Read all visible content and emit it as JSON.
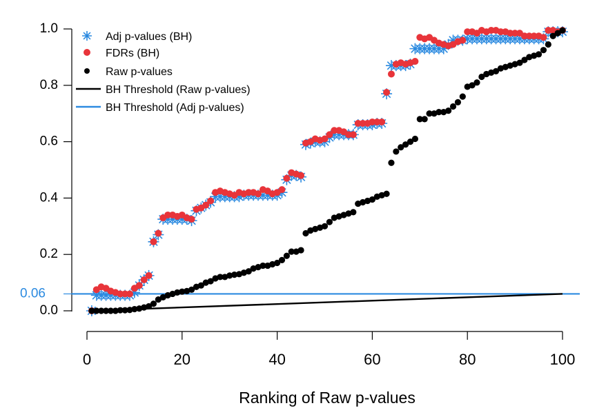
{
  "chart_data": {
    "type": "scatter",
    "title": "",
    "xlabel": "Ranking of Raw p-values",
    "ylabel": "",
    "xlim": [
      0,
      100
    ],
    "ylim": [
      0,
      1
    ],
    "x_ticks": [
      0,
      20,
      40,
      60,
      80,
      100
    ],
    "x_tick_labels": [
      "0",
      "20",
      "40",
      "60",
      "80",
      "100"
    ],
    "y_ticks": [
      0.0,
      0.2,
      0.4,
      0.6,
      0.8,
      1.0
    ],
    "y_tick_labels": [
      "0.0",
      "0.2",
      "0.4",
      "0.6",
      "0.8",
      "1.0"
    ],
    "reference_line": {
      "value": 0.06,
      "label": "0.06",
      "color": "#2b8ae0"
    },
    "colors": {
      "adj": "#2b8ae0",
      "fdr": "#e8343a",
      "raw": "#000000",
      "bh_raw": "#000000",
      "bh_adj": "#2b8ae0"
    },
    "legend": {
      "position": "top-left",
      "entries": [
        {
          "label": "Adj p-values (BH)",
          "kind": "star",
          "series": "adj"
        },
        {
          "label": "FDRs (BH)",
          "kind": "dot",
          "series": "fdr"
        },
        {
          "label": "Raw p-values",
          "kind": "dot",
          "series": "raw"
        },
        {
          "label": "BH Threshold (Raw p-values)",
          "kind": "line",
          "series": "bh_raw"
        },
        {
          "label": "BH Threshold (Adj p-values)",
          "kind": "line",
          "series": "bh_adj"
        }
      ]
    },
    "series": [
      {
        "name": "Adj p-values (BH)",
        "marker": "star",
        "x": [
          1,
          2,
          3,
          4,
          5,
          6,
          7,
          8,
          9,
          10,
          11,
          12,
          13,
          14,
          15,
          16,
          17,
          18,
          19,
          20,
          21,
          22,
          23,
          24,
          25,
          26,
          27,
          28,
          29,
          30,
          31,
          32,
          33,
          34,
          35,
          36,
          37,
          38,
          39,
          40,
          41,
          42,
          43,
          44,
          45,
          46,
          47,
          48,
          49,
          50,
          51,
          52,
          53,
          54,
          55,
          56,
          57,
          58,
          59,
          60,
          61,
          62,
          63,
          64,
          65,
          66,
          67,
          68,
          69,
          70,
          71,
          72,
          73,
          74,
          75,
          76,
          77,
          78,
          79,
          80,
          81,
          82,
          83,
          84,
          85,
          86,
          87,
          88,
          89,
          90,
          91,
          92,
          93,
          94,
          95,
          96,
          97,
          98,
          99,
          100
        ],
        "values": [
          0.0,
          0.055,
          0.055,
          0.055,
          0.055,
          0.055,
          0.055,
          0.055,
          0.055,
          0.065,
          0.09,
          0.11,
          0.125,
          0.245,
          0.27,
          0.325,
          0.325,
          0.325,
          0.325,
          0.325,
          0.325,
          0.32,
          0.355,
          0.365,
          0.375,
          0.385,
          0.405,
          0.405,
          0.405,
          0.405,
          0.405,
          0.405,
          0.41,
          0.41,
          0.41,
          0.41,
          0.41,
          0.41,
          0.41,
          0.41,
          0.42,
          0.465,
          0.48,
          0.48,
          0.475,
          0.59,
          0.595,
          0.6,
          0.6,
          0.6,
          0.615,
          0.625,
          0.625,
          0.625,
          0.625,
          0.625,
          0.66,
          0.66,
          0.66,
          0.66,
          0.665,
          0.665,
          0.77,
          0.87,
          0.87,
          0.87,
          0.87,
          0.875,
          0.93,
          0.93,
          0.93,
          0.93,
          0.93,
          0.93,
          0.93,
          0.945,
          0.96,
          0.96,
          0.96,
          0.965,
          0.965,
          0.965,
          0.965,
          0.965,
          0.965,
          0.965,
          0.965,
          0.965,
          0.965,
          0.965,
          0.965,
          0.965,
          0.965,
          0.965,
          0.965,
          0.965,
          0.99,
          0.99,
          0.99,
          0.99
        ]
      },
      {
        "name": "FDRs (BH)",
        "marker": "dot",
        "x": [
          1,
          2,
          3,
          4,
          5,
          6,
          7,
          8,
          9,
          10,
          11,
          12,
          13,
          14,
          15,
          16,
          17,
          18,
          19,
          20,
          21,
          22,
          23,
          24,
          25,
          26,
          27,
          28,
          29,
          30,
          31,
          32,
          33,
          34,
          35,
          36,
          37,
          38,
          39,
          40,
          41,
          42,
          43,
          44,
          45,
          46,
          47,
          48,
          49,
          50,
          51,
          52,
          53,
          54,
          55,
          56,
          57,
          58,
          59,
          60,
          61,
          62,
          63,
          64,
          65,
          66,
          67,
          68,
          69,
          70,
          71,
          72,
          73,
          74,
          75,
          76,
          77,
          78,
          79,
          80,
          81,
          82,
          83,
          84,
          85,
          86,
          87,
          88,
          89,
          90,
          91,
          92,
          93,
          94,
          95,
          96,
          97,
          98,
          99,
          100
        ],
        "values": [
          0.0,
          0.075,
          0.085,
          0.08,
          0.07,
          0.065,
          0.06,
          0.06,
          0.06,
          0.08,
          0.09,
          0.11,
          0.125,
          0.245,
          0.275,
          0.33,
          0.34,
          0.34,
          0.335,
          0.34,
          0.33,
          0.325,
          0.36,
          0.365,
          0.375,
          0.39,
          0.42,
          0.425,
          0.42,
          0.415,
          0.41,
          0.42,
          0.415,
          0.42,
          0.42,
          0.415,
          0.43,
          0.425,
          0.415,
          0.42,
          0.43,
          0.47,
          0.49,
          0.485,
          0.48,
          0.595,
          0.6,
          0.61,
          0.605,
          0.61,
          0.625,
          0.64,
          0.64,
          0.635,
          0.625,
          0.625,
          0.665,
          0.665,
          0.665,
          0.67,
          0.67,
          0.67,
          0.775,
          0.84,
          0.875,
          0.88,
          0.875,
          0.88,
          0.885,
          0.97,
          0.965,
          0.97,
          0.96,
          0.95,
          0.945,
          0.94,
          0.945,
          0.955,
          0.96,
          0.99,
          0.99,
          0.985,
          0.995,
          0.99,
          0.995,
          0.995,
          0.99,
          0.99,
          0.985,
          0.985,
          0.985,
          0.975,
          0.975,
          0.975,
          0.975,
          0.97,
          0.995,
          0.995,
          0.99,
          0.995
        ]
      },
      {
        "name": "Raw p-values",
        "marker": "dot",
        "x": [
          1,
          2,
          3,
          4,
          5,
          6,
          7,
          8,
          9,
          10,
          11,
          12,
          13,
          14,
          15,
          16,
          17,
          18,
          19,
          20,
          21,
          22,
          23,
          24,
          25,
          26,
          27,
          28,
          29,
          30,
          31,
          32,
          33,
          34,
          35,
          36,
          37,
          38,
          39,
          40,
          41,
          42,
          43,
          44,
          45,
          46,
          47,
          48,
          49,
          50,
          51,
          52,
          53,
          54,
          55,
          56,
          57,
          58,
          59,
          60,
          61,
          62,
          63,
          64,
          65,
          66,
          67,
          68,
          69,
          70,
          71,
          72,
          73,
          74,
          75,
          76,
          77,
          78,
          79,
          80,
          81,
          82,
          83,
          84,
          85,
          86,
          87,
          88,
          89,
          90,
          91,
          92,
          93,
          94,
          95,
          96,
          97,
          98,
          99,
          100
        ],
        "values": [
          0.0,
          0.0,
          0.0,
          0.0,
          0.0,
          0.0,
          0.002,
          0.002,
          0.003,
          0.006,
          0.008,
          0.012,
          0.016,
          0.025,
          0.04,
          0.048,
          0.055,
          0.06,
          0.065,
          0.068,
          0.07,
          0.075,
          0.085,
          0.09,
          0.1,
          0.105,
          0.115,
          0.12,
          0.12,
          0.125,
          0.128,
          0.13,
          0.135,
          0.14,
          0.15,
          0.155,
          0.16,
          0.16,
          0.165,
          0.17,
          0.18,
          0.195,
          0.21,
          0.21,
          0.215,
          0.275,
          0.285,
          0.29,
          0.295,
          0.3,
          0.315,
          0.33,
          0.335,
          0.34,
          0.345,
          0.35,
          0.38,
          0.385,
          0.39,
          0.395,
          0.405,
          0.41,
          0.415,
          0.525,
          0.565,
          0.58,
          0.59,
          0.6,
          0.61,
          0.68,
          0.68,
          0.7,
          0.7,
          0.705,
          0.705,
          0.71,
          0.725,
          0.74,
          0.76,
          0.795,
          0.8,
          0.81,
          0.83,
          0.84,
          0.845,
          0.85,
          0.86,
          0.865,
          0.87,
          0.875,
          0.88,
          0.89,
          0.9,
          0.905,
          0.91,
          0.925,
          0.945,
          0.975,
          0.985,
          0.995
        ]
      },
      {
        "name": "BH Threshold (Raw p-values)",
        "marker": "line",
        "x": [
          1,
          100
        ],
        "values": [
          0.0006,
          0.06
        ]
      }
    ]
  }
}
